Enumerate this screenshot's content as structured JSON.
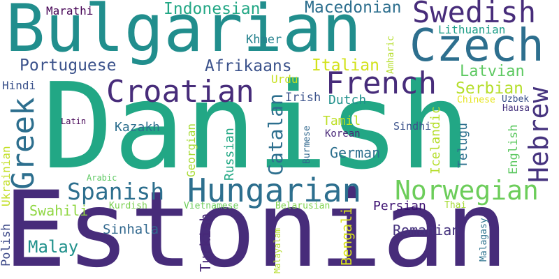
{
  "words": [
    {
      "text": "Danish",
      "color": "#22a785"
    },
    {
      "text": "Estonian",
      "color": "#472c7a"
    },
    {
      "text": "Bulgarian",
      "color": "#218e8d"
    },
    {
      "text": "Czech",
      "color": "#2d6f8e"
    },
    {
      "text": "Swedish",
      "color": "#472c7a"
    },
    {
      "text": "Hungarian",
      "color": "#2d6f8e"
    },
    {
      "text": "Croatian",
      "color": "#472c7a"
    },
    {
      "text": "French",
      "color": "#472c7a"
    },
    {
      "text": "Norwegian",
      "color": "#6ccd5a"
    },
    {
      "text": "Greek",
      "color": "#2d6f8e"
    },
    {
      "text": "Hebrew",
      "color": "#46337e"
    },
    {
      "text": "Spanish",
      "color": "#2d6f8e"
    },
    {
      "text": "Macedonian",
      "color": "#2d6f8e"
    },
    {
      "text": "Indonesian",
      "color": "#22a785"
    },
    {
      "text": "Portuguese",
      "color": "#3b528b"
    },
    {
      "text": "Afrikaans",
      "color": "#3b528b"
    },
    {
      "text": "Italian",
      "color": "#d2e21b"
    },
    {
      "text": "Latvian",
      "color": "#5ec962"
    },
    {
      "text": "Serbian",
      "color": "#b5de2b"
    },
    {
      "text": "Malay",
      "color": "#21918c"
    },
    {
      "text": "Catalan",
      "color": "#2d6f8e"
    },
    {
      "text": "German",
      "color": "#2d708e"
    },
    {
      "text": "Romanian",
      "color": "#46337e"
    },
    {
      "text": "Lithuanian",
      "color": "#1f9e89"
    },
    {
      "text": "Marathi",
      "color": "#440154"
    },
    {
      "text": "Khmer",
      "color": "#26828e"
    },
    {
      "text": "Hindi",
      "color": "#3b528b"
    },
    {
      "text": "Irish",
      "color": "#3b528b"
    },
    {
      "text": "Dutch",
      "color": "#21918c"
    },
    {
      "text": "Kazakh",
      "color": "#2d6f8e"
    },
    {
      "text": "Tamil",
      "color": "#bddf26"
    },
    {
      "text": "Korean",
      "color": "#482878"
    },
    {
      "text": "Sindhi",
      "color": "#3b528b"
    },
    {
      "text": "Swahili",
      "color": "#90d743"
    },
    {
      "text": "Sinhala",
      "color": "#31688e"
    },
    {
      "text": "Persian",
      "color": "#3b0f70"
    },
    {
      "text": "Urdu",
      "color": "#c8e020"
    },
    {
      "text": "Latin",
      "color": "#440154"
    },
    {
      "text": "Arabic",
      "color": "#5ec962"
    },
    {
      "text": "Kurdish",
      "color": "#7ad151"
    },
    {
      "text": "Vietnamese",
      "color": "#6ccd5a"
    },
    {
      "text": "Belarusian",
      "color": "#7fd34e"
    },
    {
      "text": "Thai",
      "color": "#a5db36"
    },
    {
      "text": "Chinese",
      "color": "#e5e419"
    },
    {
      "text": "Uzbek",
      "color": "#3b528b"
    },
    {
      "text": "Hausa",
      "color": "#46337e"
    },
    {
      "text": "Russian",
      "color": "#22a884"
    },
    {
      "text": "Georgian",
      "color": "#a8db34"
    },
    {
      "text": "Burmese",
      "color": "#31688e"
    },
    {
      "text": "Amharic",
      "color": "#b5de2b"
    },
    {
      "text": "Icelandic",
      "color": "#b5de2b"
    },
    {
      "text": "Telugu",
      "color": "#2d708e"
    },
    {
      "text": "English",
      "color": "#5ec962"
    },
    {
      "text": "Turkish",
      "color": "#482878"
    },
    {
      "text": "Bengali",
      "color": "#d8e219"
    },
    {
      "text": "Malayalam",
      "color": "#b5de2b"
    },
    {
      "text": "Malagasy",
      "color": "#2c728e"
    },
    {
      "text": "Polish",
      "color": "#3e4a89"
    },
    {
      "text": "Ukrainian",
      "color": "#c2df23"
    }
  ]
}
